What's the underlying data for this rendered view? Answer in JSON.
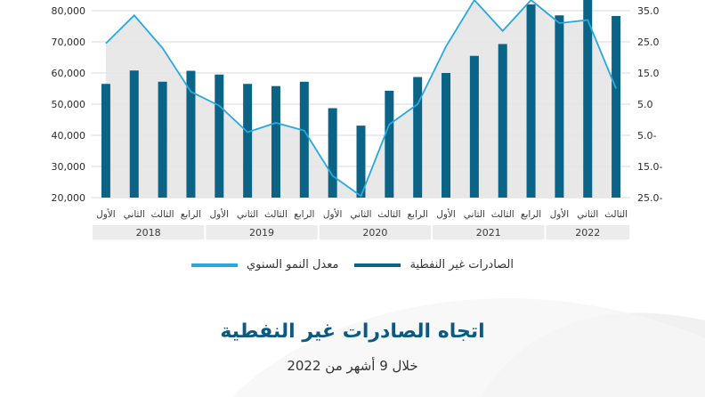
{
  "colors": {
    "bar": "#0b6486",
    "line": "#29a8df",
    "area": "#e6e6e6",
    "title": "#0b5a82",
    "year_band": "#ececec"
  },
  "legend": {
    "bar_label": "الصادرات غير النفطية",
    "line_label": "معدل النمو السنوي"
  },
  "title": "اتجاه الصادرات غير النفطية",
  "subtitle": "خلال 9 أشهر من 2022",
  "chart_data": {
    "type": "bar",
    "title": "اتجاه الصادرات غير النفطية",
    "subtitle": "خلال 9 أشهر من 2022",
    "categories": [
      "الأول",
      "الثاني",
      "الثالث",
      "الرابع",
      "الأول",
      "الثاني",
      "الثالث",
      "الرابع",
      "الأول",
      "الثاني",
      "الثالث",
      "الرابع",
      "الأول",
      "الثاني",
      "الثالث",
      "الرابع",
      "الأول",
      "الثاني",
      "الثالث"
    ],
    "years": [
      {
        "label": "2018",
        "span": 4
      },
      {
        "label": "2019",
        "span": 4
      },
      {
        "label": "2020",
        "span": 4
      },
      {
        "label": "2021",
        "span": 4
      },
      {
        "label": "2022",
        "span": 3
      }
    ],
    "series": [
      {
        "name": "الصادرات غير النفطية",
        "type": "bar",
        "axis": "left",
        "values": [
          56500,
          60800,
          57200,
          60700,
          59500,
          56500,
          55800,
          57200,
          48700,
          43100,
          54300,
          58700,
          60000,
          65500,
          69300,
          82000,
          78500,
          84500,
          78300
        ]
      },
      {
        "name": "معدل النمو السنوي",
        "type": "line",
        "axis": "right",
        "values": [
          24.5,
          33.5,
          23.0,
          9.0,
          4.5,
          -4.0,
          -1.0,
          -3.5,
          -18.0,
          -24.5,
          -1.5,
          5.0,
          23.5,
          48.0,
          28.5,
          41.0,
          31.0,
          32.0,
          10.0
        ]
      }
    ],
    "y_left_ticks": [
      "80,000",
      "70,000",
      "60,000",
      "50,000",
      "40,000",
      "30,000",
      "20,000"
    ],
    "y_right_ticks": [
      "35.0",
      "25.0",
      "15.0",
      "5.0",
      "5.0-",
      "15.0-",
      "25.0-"
    ],
    "ylim_left": [
      20000,
      80000
    ],
    "ylim_right": [
      -25,
      35
    ]
  }
}
